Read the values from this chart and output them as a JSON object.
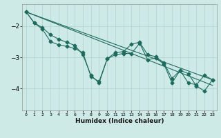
{
  "xlabel": "Humidex (Indice chaleur)",
  "background_color": "#ceeae6",
  "grid_color": "#aed4d0",
  "line_color": "#1e6b5e",
  "xlim": [
    -0.5,
    23.5
  ],
  "ylim": [
    -4.7,
    -1.3
  ],
  "yticks": [
    -4,
    -3,
    -2
  ],
  "xticks": [
    0,
    1,
    2,
    3,
    4,
    5,
    6,
    7,
    8,
    9,
    10,
    11,
    12,
    13,
    14,
    15,
    16,
    17,
    18,
    19,
    20,
    21,
    22,
    23
  ],
  "line1_x": [
    0,
    1,
    2,
    3,
    4,
    5,
    6,
    7,
    8,
    9,
    10,
    11,
    12,
    13,
    14,
    15,
    16,
    17,
    18,
    19,
    20,
    21,
    22,
    23
  ],
  "line1_y": [
    -1.55,
    -1.9,
    -2.1,
    -2.5,
    -2.6,
    -2.65,
    -2.72,
    -2.85,
    -3.62,
    -3.78,
    -3.05,
    -2.85,
    -2.82,
    -2.58,
    -2.52,
    -2.92,
    -2.98,
    -3.18,
    -3.68,
    -3.42,
    -3.82,
    -3.88,
    -3.58,
    -3.72
  ],
  "line2_x": [
    0,
    1,
    2,
    3,
    4,
    5,
    6,
    7,
    8,
    9,
    10,
    11,
    12,
    13,
    14,
    15,
    16,
    17,
    18,
    19,
    20,
    21,
    22,
    23
  ],
  "line2_y": [
    -1.55,
    -1.9,
    -2.05,
    -2.28,
    -2.42,
    -2.52,
    -2.62,
    -2.92,
    -3.58,
    -3.82,
    -3.05,
    -2.92,
    -2.88,
    -2.88,
    -2.55,
    -3.08,
    -3.02,
    -3.22,
    -3.82,
    -3.42,
    -3.52,
    -3.92,
    -4.08,
    -3.72
  ],
  "line3_x": [
    0,
    23
  ],
  "line3_y": [
    -1.55,
    -3.72
  ],
  "line4_x": [
    0,
    23
  ],
  "line4_y": [
    -1.55,
    -3.9
  ]
}
